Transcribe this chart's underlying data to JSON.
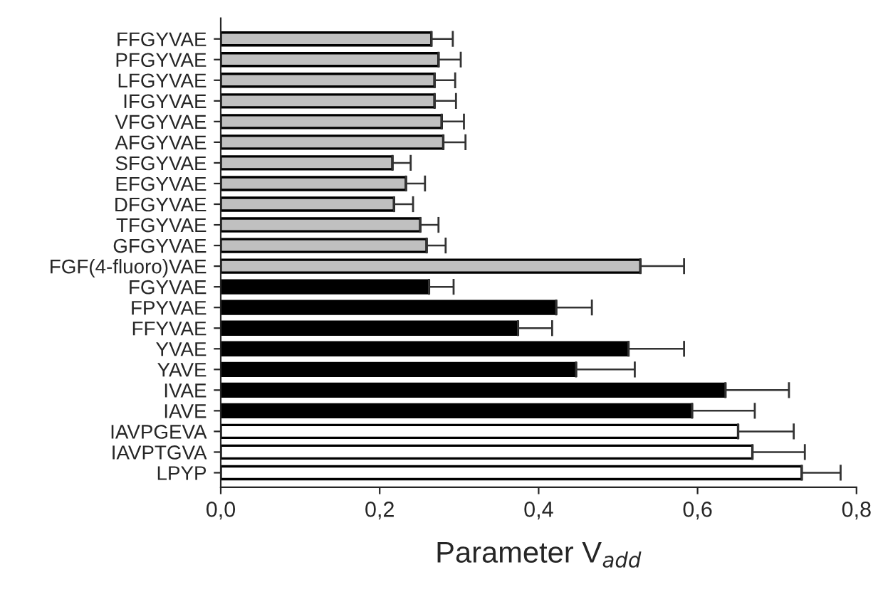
{
  "chart_data": {
    "type": "bar",
    "orientation": "horizontal",
    "xlabel": "Parameter V$_{add}$",
    "categories": [
      "FFGYVAE",
      "PFGYVAE",
      "LFGYVAE",
      "IFGYVAE",
      "VFGYVAE",
      "AFGYVAE",
      "SFGYVAE",
      "EFGYVAE",
      "DFGYVAE",
      "TFGYVAE",
      "GFGYVAE",
      "FGF(4-fluoro)VAE",
      "FGYVAE",
      "FPYVAE",
      "FFYVAE",
      "YVAE",
      "YAVE",
      "IVAE",
      "IAVE",
      "IAVPGEVA",
      "IAVPTGVA",
      "LPYP"
    ],
    "values": [
      0.265,
      0.274,
      0.269,
      0.269,
      0.278,
      0.28,
      0.216,
      0.233,
      0.218,
      0.251,
      0.259,
      0.528,
      0.262,
      0.422,
      0.374,
      0.513,
      0.447,
      0.635,
      0.593,
      0.651,
      0.669,
      0.731
    ],
    "errors": [
      [
        0.265,
        0.292
      ],
      [
        0.274,
        0.302
      ],
      [
        0.269,
        0.295
      ],
      [
        0.269,
        0.296
      ],
      [
        0.278,
        0.306
      ],
      [
        0.28,
        0.308
      ],
      [
        0.216,
        0.239
      ],
      [
        0.233,
        0.257
      ],
      [
        0.218,
        0.242
      ],
      [
        0.251,
        0.274
      ],
      [
        0.259,
        0.283
      ],
      [
        0.528,
        0.583
      ],
      [
        0.262,
        0.293
      ],
      [
        0.422,
        0.467
      ],
      [
        0.374,
        0.417
      ],
      [
        0.513,
        0.583
      ],
      [
        0.447,
        0.521
      ],
      [
        0.635,
        0.715
      ],
      [
        0.593,
        0.672
      ],
      [
        0.651,
        0.721
      ],
      [
        0.669,
        0.735
      ],
      [
        0.731,
        0.78
      ]
    ],
    "colors": [
      "#c0c0c0",
      "#c0c0c0",
      "#c0c0c0",
      "#c0c0c0",
      "#c0c0c0",
      "#c0c0c0",
      "#c0c0c0",
      "#c0c0c0",
      "#c0c0c0",
      "#c0c0c0",
      "#c0c0c0",
      "#c0c0c0",
      "#000000",
      "#000000",
      "#000000",
      "#000000",
      "#000000",
      "#000000",
      "#000000",
      "#ffffff",
      "#ffffff",
      "#ffffff"
    ],
    "xlim": [
      0,
      0.8
    ],
    "xticks": [
      {
        "value": 0,
        "label": "0,0"
      },
      {
        "value": 0.2,
        "label": "0,2"
      },
      {
        "value": 0.4,
        "label": "0,4"
      },
      {
        "value": 0.6,
        "label": "0,6"
      },
      {
        "value": 0.8,
        "label": "0,8"
      }
    ],
    "grid": false,
    "legend": false
  }
}
